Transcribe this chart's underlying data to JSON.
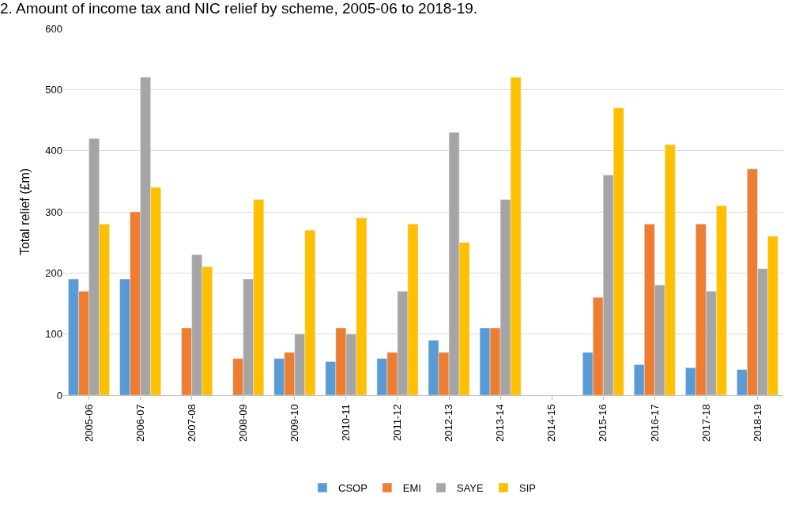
{
  "chart_data": {
    "type": "bar",
    "title": "2. Amount of income tax and NIC relief by scheme, 2005-06 to 2018-19.",
    "ylabel": "Total relief (£m)",
    "categories": [
      "2005-06",
      "2006-07",
      "2007-08",
      "2008-09",
      "2009-10",
      "2010-11",
      "2011-12",
      "2012-13",
      "2013-14",
      "2014-15",
      "2015-16",
      "2016-17",
      "2017-18",
      "2018-19"
    ],
    "series": [
      {
        "name": "CSOP",
        "color": "#5b9bd5",
        "values": [
          190,
          190,
          null,
          null,
          60,
          55,
          60,
          90,
          110,
          null,
          70,
          50,
          45,
          42
        ]
      },
      {
        "name": "EMI",
        "color": "#ed7d31",
        "values": [
          170,
          300,
          110,
          60,
          70,
          110,
          70,
          70,
          110,
          null,
          160,
          280,
          280,
          370
        ]
      },
      {
        "name": "SAYE",
        "color": "#a5a5a5",
        "values": [
          420,
          520,
          230,
          190,
          100,
          100,
          170,
          430,
          320,
          null,
          360,
          180,
          170,
          207
        ]
      },
      {
        "name": "SIP",
        "color": "#ffc000",
        "values": [
          280,
          340,
          210,
          320,
          270,
          290,
          280,
          250,
          520,
          null,
          470,
          410,
          310,
          260
        ]
      }
    ],
    "ylim": [
      0,
      600
    ],
    "yticks": [
      0,
      100,
      200,
      300,
      400,
      500,
      600
    ],
    "grid": "y",
    "legend": "bottom"
  }
}
